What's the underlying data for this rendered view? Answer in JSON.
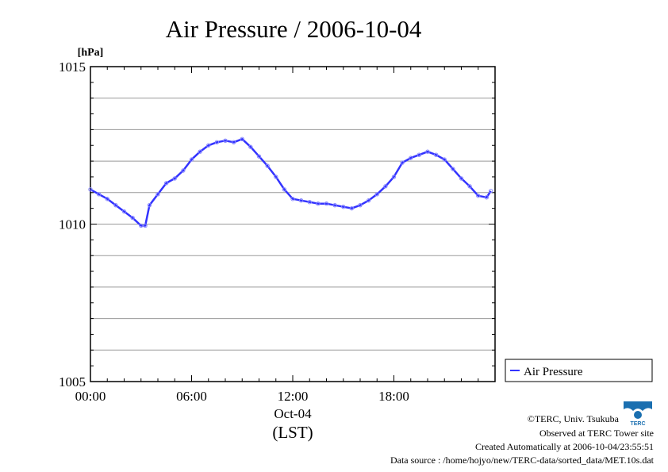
{
  "chart_data": {
    "type": "line",
    "title": "Air Pressure / 2006-10-04",
    "ylabel": "[hPa]",
    "ylim": [
      1005,
      1015
    ],
    "yticks": [
      1005,
      1010,
      1015
    ],
    "xlabel_date": "Oct-04",
    "xlabel_unit": "(LST)",
    "xlim_hours": [
      0,
      24
    ],
    "xticks": [
      {
        "hour": 0,
        "label": "00:00"
      },
      {
        "hour": 6,
        "label": "06:00"
      },
      {
        "hour": 12,
        "label": "12:00"
      },
      {
        "hour": 18,
        "label": "18:00"
      }
    ],
    "grid": true,
    "legend_position": "right",
    "series": [
      {
        "name": "Air Pressure",
        "color": "#3333ff",
        "x_hours": [
          0,
          0.5,
          1,
          1.5,
          2,
          2.5,
          3,
          3.25,
          3.5,
          4,
          4.5,
          5,
          5.5,
          6,
          6.5,
          7,
          7.5,
          8,
          8.5,
          9,
          9.5,
          10,
          10.5,
          11,
          11.5,
          12,
          12.5,
          13,
          13.5,
          14,
          14.5,
          15,
          15.5,
          16,
          16.5,
          17,
          17.5,
          18,
          18.5,
          19,
          19.5,
          20,
          20.5,
          21,
          21.5,
          22,
          22.5,
          23,
          23.5,
          23.75
        ],
        "values": [
          1011.1,
          1010.95,
          1010.8,
          1010.6,
          1010.4,
          1010.2,
          1009.95,
          1009.95,
          1010.6,
          1010.95,
          1011.3,
          1011.45,
          1011.7,
          1012.05,
          1012.3,
          1012.5,
          1012.6,
          1012.65,
          1012.6,
          1012.7,
          1012.45,
          1012.15,
          1011.85,
          1011.5,
          1011.1,
          1010.8,
          1010.75,
          1010.7,
          1010.65,
          1010.65,
          1010.6,
          1010.55,
          1010.5,
          1010.6,
          1010.75,
          1010.95,
          1011.2,
          1011.5,
          1011.95,
          1012.1,
          1012.2,
          1012.3,
          1012.2,
          1012.05,
          1011.75,
          1011.45,
          1011.2,
          1010.9,
          1010.85,
          1011.05
        ]
      }
    ]
  },
  "credits": {
    "line1": "©TERC, Univ. Tsukuba",
    "line2": "Observed at TERC Tower site",
    "line3": "Created Automatically at 2006-10-04/23:55:51",
    "line4": "Data source : /home/hojyo/new/TERC-data/sorted_data/MET.10s.dat",
    "logo_text": "TERC"
  }
}
